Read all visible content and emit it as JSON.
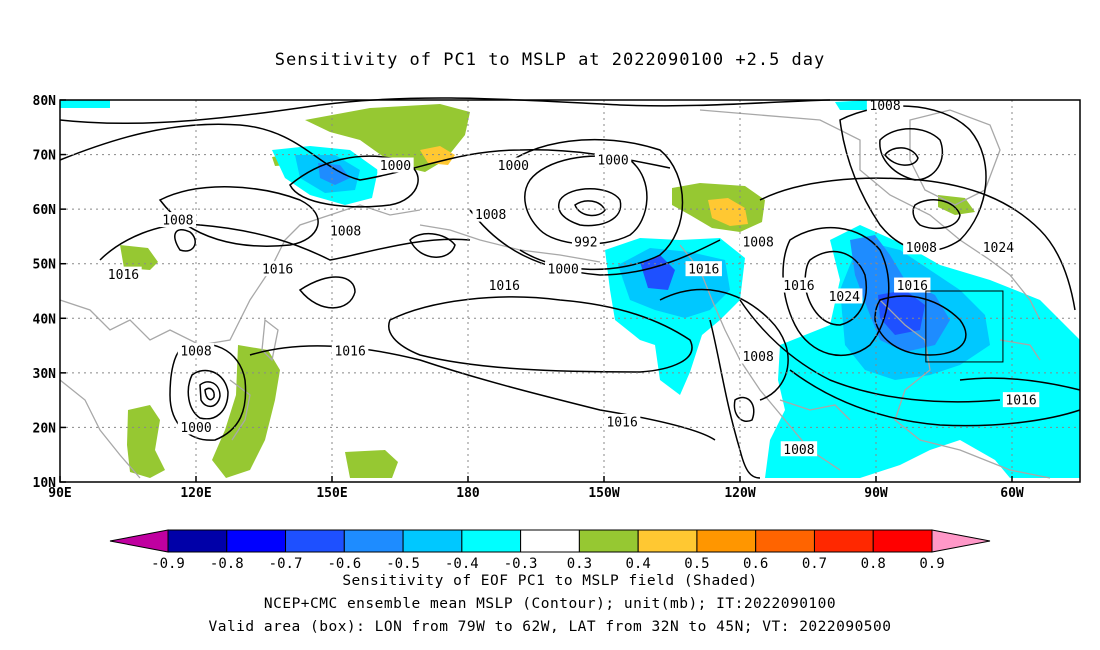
{
  "title": "Sensitivity of PC1 to MSLP at 2022090100 +2.5 day",
  "lat_labels": [
    "80N",
    "70N",
    "60N",
    "50N",
    "40N",
    "30N",
    "20N",
    "10N"
  ],
  "lat_values": [
    80,
    70,
    60,
    50,
    40,
    30,
    20,
    10
  ],
  "lon_labels": [
    "90E",
    "120E",
    "150E",
    "180",
    "150W",
    "120W",
    "90W",
    "60W"
  ],
  "lon_values": [
    90,
    120,
    150,
    180,
    210,
    240,
    270,
    300
  ],
  "lon_range": [
    90,
    315
  ],
  "lat_range": [
    10,
    80
  ],
  "colorbar": {
    "colors": [
      "#0000a8",
      "#0000ff",
      "#1e50ff",
      "#1e8cff",
      "#00c8ff",
      "#00ffff",
      "#ffffff",
      "#96c832",
      "#ffc832",
      "#ff9600",
      "#ff6400",
      "#ff2800",
      "#ff0000"
    ],
    "low_extend_color": "#c000a0",
    "high_extend_color": "#ff98c8",
    "labels": [
      "-0.9",
      "-0.8",
      "-0.7",
      "-0.6",
      "-0.5",
      "-0.4",
      "-0.3",
      "0.3",
      "0.4",
      "0.5",
      "0.6",
      "0.7",
      "0.8",
      "0.9"
    ]
  },
  "contour_labels": [
    {
      "text": "1008",
      "lon": 272,
      "lat": 79
    },
    {
      "text": "1000",
      "lon": 164,
      "lat": 68
    },
    {
      "text": "1000",
      "lon": 190,
      "lat": 68
    },
    {
      "text": "1000",
      "lon": 212,
      "lat": 69
    },
    {
      "text": "1008",
      "lon": 116,
      "lat": 58
    },
    {
      "text": "1008",
      "lon": 153,
      "lat": 56
    },
    {
      "text": "1008",
      "lon": 185,
      "lat": 59
    },
    {
      "text": "992",
      "lon": 206,
      "lat": 54
    },
    {
      "text": "1008",
      "lon": 244,
      "lat": 54
    },
    {
      "text": "1008",
      "lon": 280,
      "lat": 53
    },
    {
      "text": "1024",
      "lon": 297,
      "lat": 53
    },
    {
      "text": "1016",
      "lon": 104,
      "lat": 48
    },
    {
      "text": "1016",
      "lon": 138,
      "lat": 49
    },
    {
      "text": "1000",
      "lon": 201,
      "lat": 49
    },
    {
      "text": "1016",
      "lon": 232,
      "lat": 49
    },
    {
      "text": "1016",
      "lon": 188,
      "lat": 46
    },
    {
      "text": "1016",
      "lon": 253,
      "lat": 46
    },
    {
      "text": "1016",
      "lon": 278,
      "lat": 46
    },
    {
      "text": "1024",
      "lon": 263,
      "lat": 44
    },
    {
      "text": "1008",
      "lon": 120,
      "lat": 34
    },
    {
      "text": "1016",
      "lon": 154,
      "lat": 34
    },
    {
      "text": "1008",
      "lon": 244,
      "lat": 33
    },
    {
      "text": "1016",
      "lon": 302,
      "lat": 25
    },
    {
      "text": "1000",
      "lon": 120,
      "lat": 20
    },
    {
      "text": "1016",
      "lon": 214,
      "lat": 21
    },
    {
      "text": "1008",
      "lon": 253,
      "lat": 16
    }
  ],
  "valid_box": {
    "lon_min": 281,
    "lon_max": 298,
    "lat_min": 32,
    "lat_max": 45
  },
  "captions": [
    "Sensitivity of EOF PC1 to MSLP field (Shaded)",
    "NCEP+CMC ensemble mean MSLP (Contour); unit(mb); IT:2022090100",
    "Valid area (box): LON from 79W to 62W, LAT from 32N to 45N; VT: 2022090500"
  ]
}
